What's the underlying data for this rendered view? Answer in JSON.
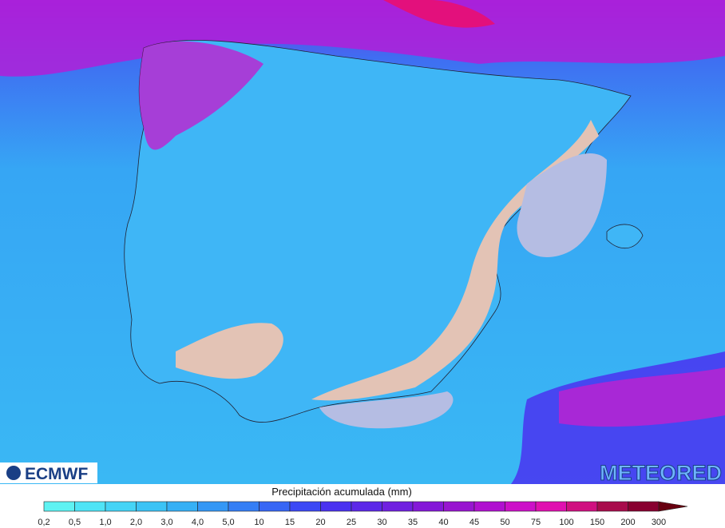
{
  "logos": {
    "left": "ECMWF",
    "right": "METEORED"
  },
  "legend": {
    "title": "Precipitación acumulada (mm)",
    "labels": [
      "0,2",
      "0,5",
      "1,0",
      "2,0",
      "3,0",
      "4,0",
      "5,0",
      "10",
      "15",
      "20",
      "25",
      "30",
      "35",
      "40",
      "45",
      "50",
      "75",
      "100",
      "150",
      "200",
      "300"
    ],
    "colors": [
      "#5ef2f2",
      "#4fe4f6",
      "#45d4f6",
      "#3cc3f5",
      "#36b0f5",
      "#3497f5",
      "#357ef5",
      "#3766f5",
      "#3c48f5",
      "#4a32f0",
      "#5c28e8",
      "#7020e0",
      "#8418d8",
      "#9815d0",
      "#b010d0",
      "#cc10c8",
      "#e010b0",
      "#d01080",
      "#a80c4c",
      "#880030",
      "#680010"
    ]
  }
}
